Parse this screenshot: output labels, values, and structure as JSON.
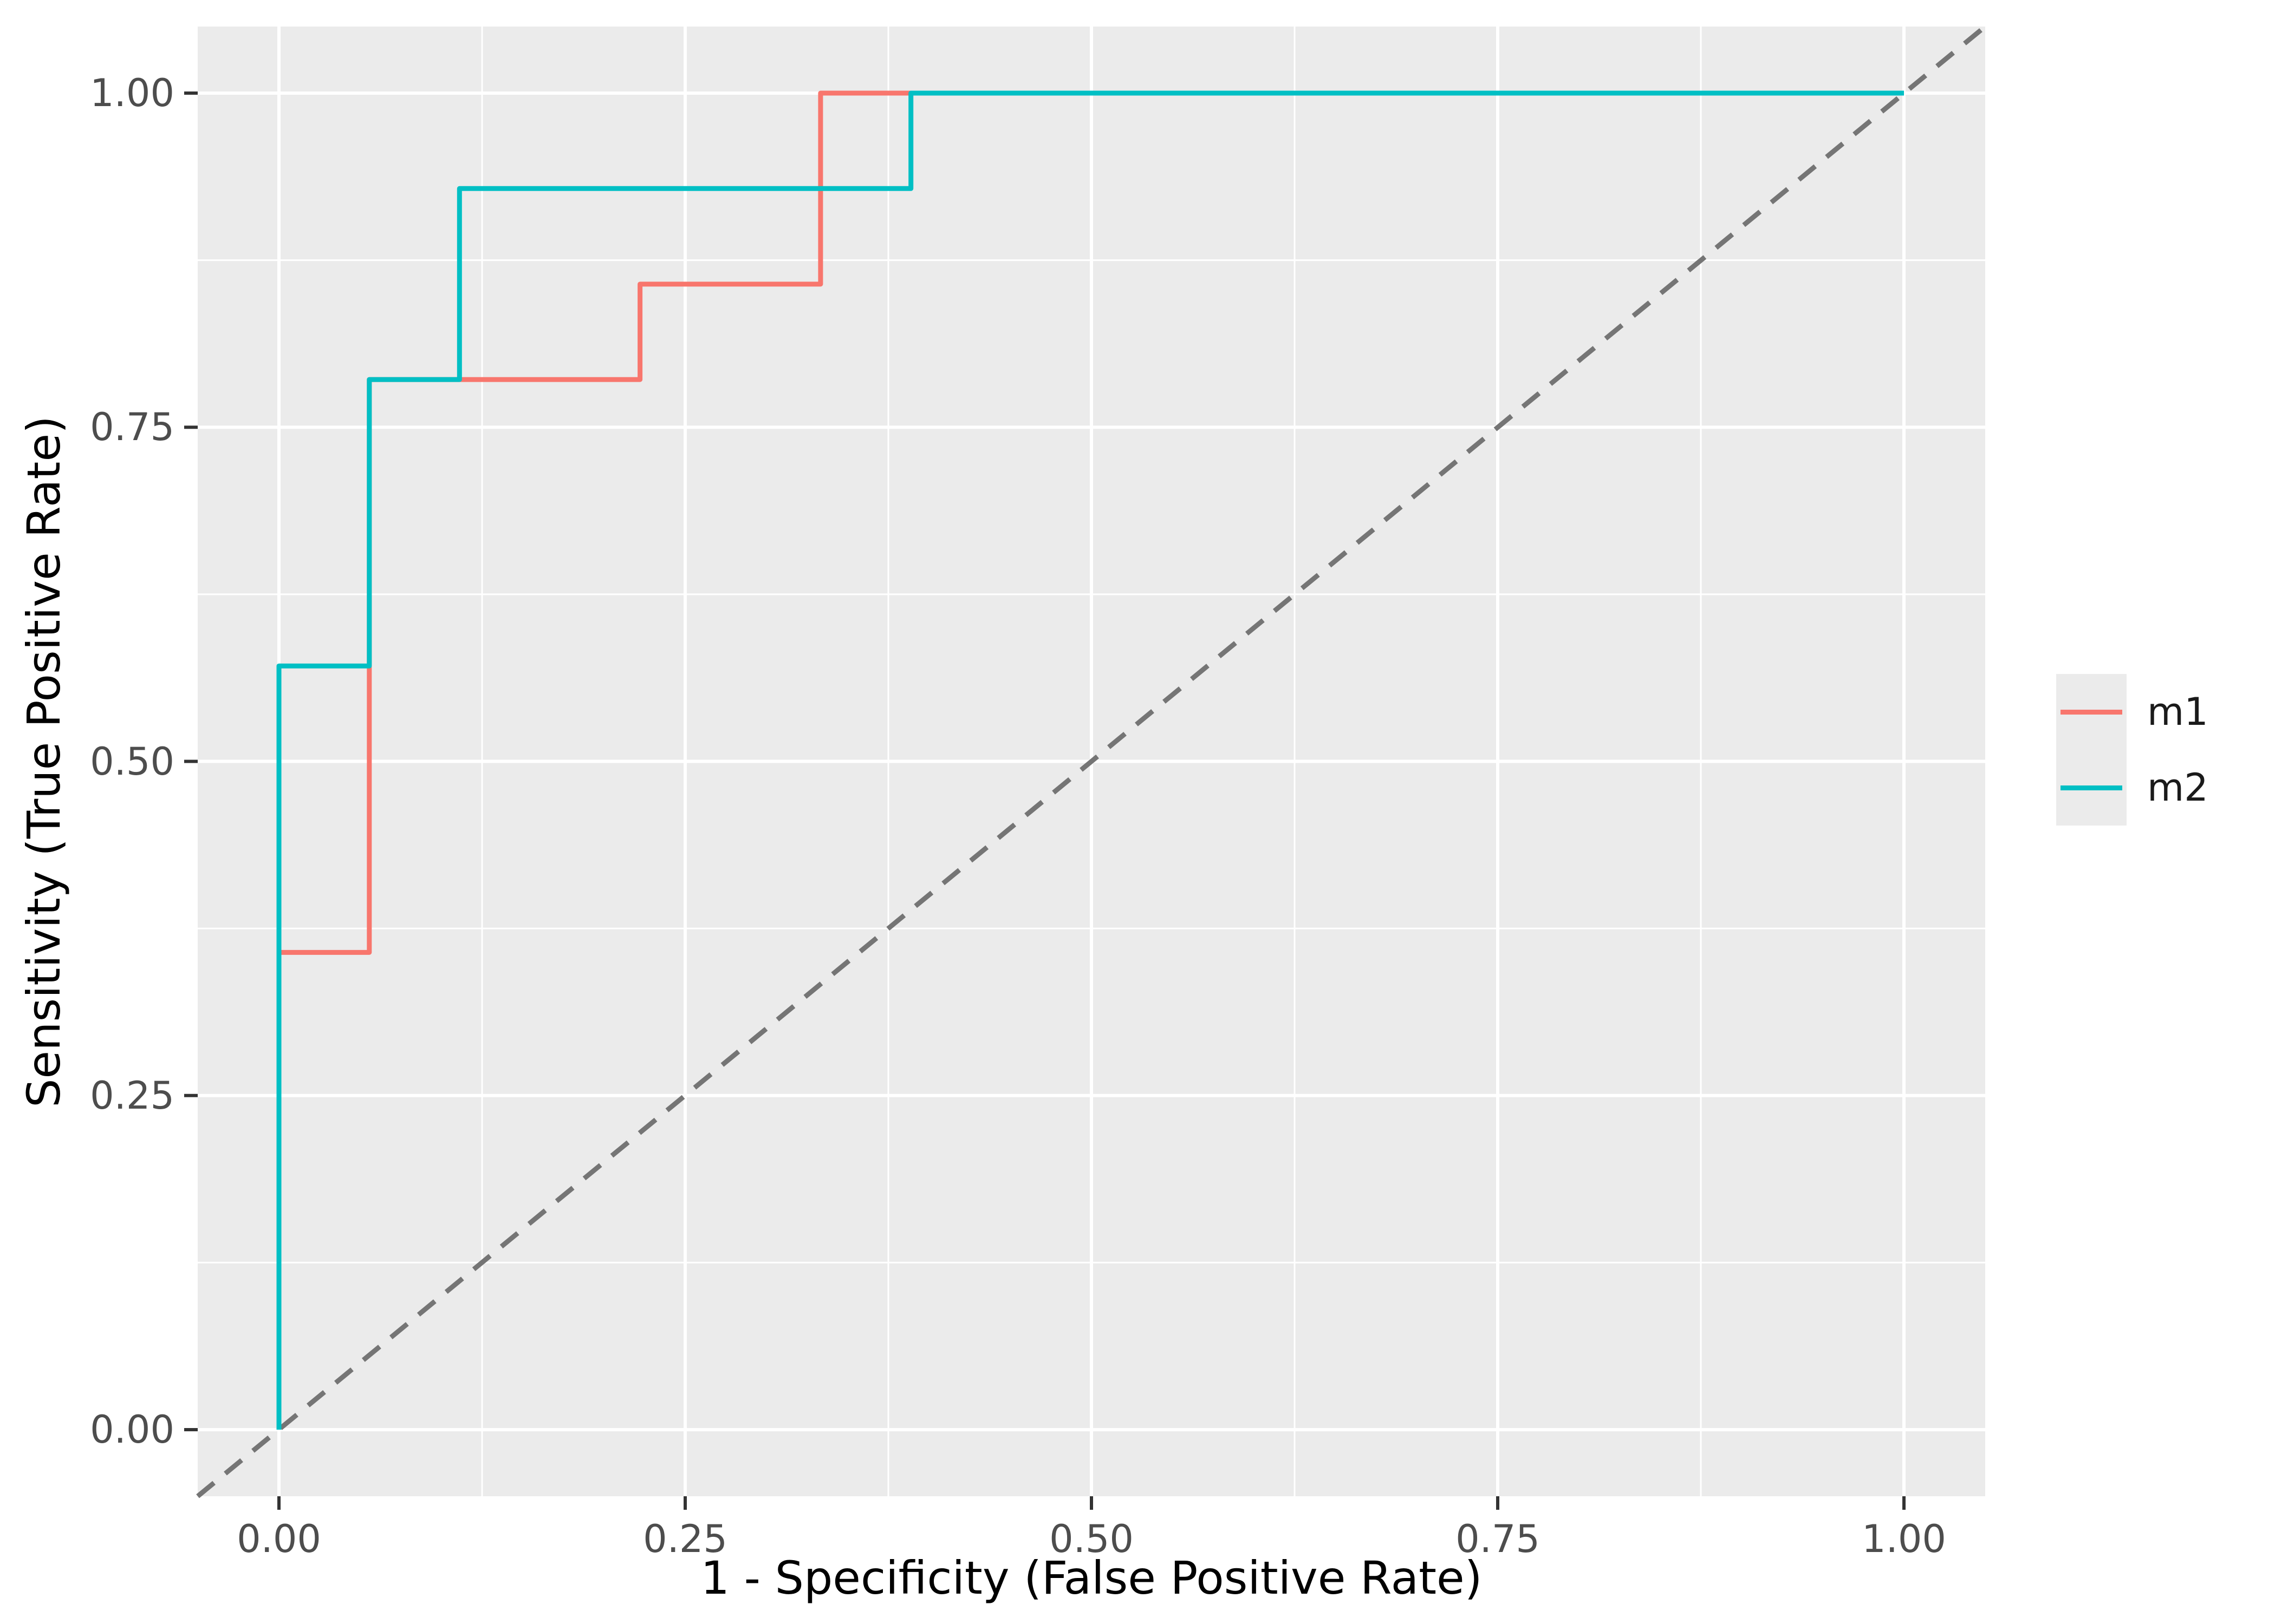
{
  "chart_data": {
    "type": "line",
    "subtype": "roc-step-curves",
    "title": "",
    "xlabel": "1 - Specificity (False Positive Rate)",
    "ylabel": "Sensitivity (True Positive Rate)",
    "xlim": [
      -0.05,
      1.05
    ],
    "ylim": [
      -0.05,
      1.05
    ],
    "x_tick_values": [
      0,
      0.25,
      0.5,
      0.75,
      1
    ],
    "x_tick_labels": [
      "0.00",
      "0.25",
      "0.50",
      "0.75",
      "1.00"
    ],
    "y_tick_values": [
      0,
      0.25,
      0.5,
      0.75,
      1
    ],
    "y_tick_labels": [
      "0.00",
      "0.25",
      "0.50",
      "0.75",
      "1.00"
    ],
    "minor_tick_values": [
      0.125,
      0.375,
      0.625,
      0.875
    ],
    "grid": "major and minor, white on grey panel",
    "legend_position": "right",
    "panel_color": "#EBEBEB",
    "grid_color": "#FFFFFF",
    "tick_mark_color": "#333333",
    "tick_label_color": "#4D4D4D",
    "axis_title_color": "#000000",
    "reference_line": {
      "type": "diagonal",
      "slope": 1,
      "intercept": 0,
      "linestyle": "dashed",
      "color": "#757575"
    },
    "series": [
      {
        "name": "m1",
        "color": "#F8766D",
        "points": [
          [
            0,
            0
          ],
          [
            0,
            0.3571
          ],
          [
            0.0556,
            0.3571
          ],
          [
            0.0556,
            0.7857
          ],
          [
            0.2222,
            0.7857
          ],
          [
            0.2222,
            0.8571
          ],
          [
            0.3333,
            0.8571
          ],
          [
            0.3333,
            1.0
          ],
          [
            1.0,
            1.0
          ]
        ]
      },
      {
        "name": "m2",
        "color": "#00BFC4",
        "points": [
          [
            0,
            0
          ],
          [
            0,
            0.5714
          ],
          [
            0.0556,
            0.5714
          ],
          [
            0.0556,
            0.7857
          ],
          [
            0.1111,
            0.7857
          ],
          [
            0.1111,
            0.9286
          ],
          [
            0.3889,
            0.9286
          ],
          [
            0.3889,
            1.0
          ],
          [
            1.0,
            1.0
          ]
        ]
      }
    ]
  },
  "legend": {
    "key_background": "#EBEBEB",
    "items": [
      {
        "label": "m1",
        "color": "#F8766D"
      },
      {
        "label": "m2",
        "color": "#00BFC4"
      }
    ]
  }
}
